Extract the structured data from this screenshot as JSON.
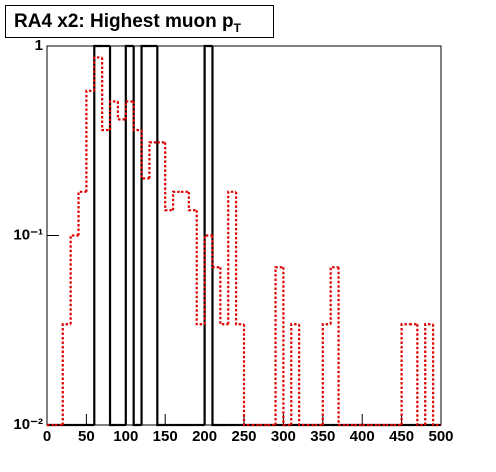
{
  "chart_data": {
    "type": "histogram",
    "title": "RA4 x2: Highest muon p",
    "title_subscript": "T",
    "bins": [
      0,
      10,
      20,
      30,
      40,
      50,
      60,
      70,
      80,
      90,
      100,
      110,
      120,
      130,
      140,
      150,
      160,
      170,
      180,
      190,
      200,
      210,
      220,
      230,
      240,
      250,
      260,
      270,
      280,
      290,
      300,
      310,
      320,
      330,
      340,
      350,
      360,
      370,
      380,
      390,
      400,
      410,
      420,
      430,
      440,
      450,
      460,
      470,
      480,
      490,
      500
    ],
    "series": [
      {
        "color": "#000000",
        "values": [
          0,
          0,
          0,
          0,
          0,
          0,
          1,
          1,
          0,
          0,
          1,
          0,
          1,
          1,
          0,
          0,
          0,
          0,
          0,
          0,
          1,
          0,
          0,
          0,
          0,
          0,
          0,
          0,
          0,
          0,
          0,
          0,
          0,
          0,
          0,
          0,
          0,
          0,
          0,
          0,
          0,
          0,
          0,
          0,
          0,
          0,
          0,
          0,
          0,
          0
        ]
      },
      {
        "color": "#dd0000",
        "dashed": true,
        "values": [
          0,
          0,
          0.034,
          0.1,
          0.17,
          0.58,
          0.87,
          0.36,
          0.51,
          0.41,
          0.51,
          0.36,
          0.2,
          0.31,
          0.31,
          0.136,
          0.17,
          0.17,
          0.136,
          0.034,
          0.1,
          0.068,
          0.034,
          0.17,
          0.034,
          0,
          0,
          0,
          0,
          0.068,
          0,
          0.034,
          0,
          0,
          0,
          0.034,
          0.068,
          0,
          0,
          0,
          0,
          0,
          0,
          0,
          0,
          0.034,
          0.034,
          0,
          0.034,
          0
        ]
      }
    ],
    "xlim": [
      0,
      500
    ],
    "xticks": [
      0,
      50,
      100,
      150,
      200,
      250,
      300,
      350,
      400,
      450,
      500
    ],
    "ylim": [
      0.01,
      1
    ],
    "ylog": true,
    "yticks": [
      {
        "value": 0.01,
        "label": "10⁻²"
      },
      {
        "value": 0.1,
        "label": "10⁻¹"
      },
      1
    ]
  }
}
